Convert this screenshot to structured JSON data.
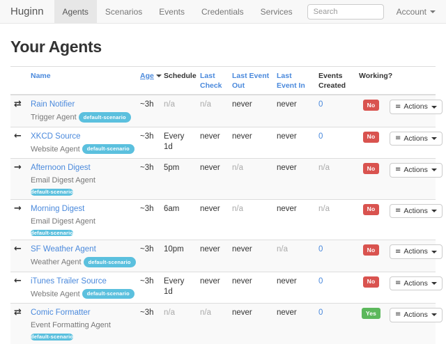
{
  "colors": {
    "link": "#4a89dc",
    "badge-info": "#5bc0de",
    "danger": "#d9534f",
    "success": "#5cb85c"
  },
  "navbar": {
    "brand": "Huginn",
    "items": [
      {
        "label": "Agents",
        "active": true
      },
      {
        "label": "Scenarios",
        "active": false
      },
      {
        "label": "Events",
        "active": false
      },
      {
        "label": "Credentials",
        "active": false
      },
      {
        "label": "Services",
        "active": false
      }
    ],
    "search_placeholder": "Search",
    "account_label": "Account"
  },
  "page": {
    "title": "Your Agents"
  },
  "table": {
    "actions_label": "Actions",
    "headers": [
      {
        "label": "",
        "sortable": false,
        "sorted": false
      },
      {
        "label": "Name",
        "sortable": true,
        "sorted": false
      },
      {
        "label": "Age",
        "sortable": true,
        "sorted": true
      },
      {
        "label": "Schedule",
        "sortable": false,
        "sorted": false
      },
      {
        "label": "Last Check",
        "sortable": true,
        "sorted": false
      },
      {
        "label": "Last Event Out",
        "sortable": true,
        "sorted": false
      },
      {
        "label": "Last Event In",
        "sortable": true,
        "sorted": false
      },
      {
        "label": "Events Created",
        "sortable": false,
        "sorted": false
      },
      {
        "label": "Working?",
        "sortable": false,
        "sorted": false
      },
      {
        "label": "",
        "sortable": false,
        "sorted": false
      }
    ],
    "rows": [
      {
        "icon": "exchange-icon",
        "name": "Rain Notifier",
        "type": "Trigger Agent",
        "scenario": "default-scenario",
        "badge_below": false,
        "age": "~3h",
        "schedule": "n/a",
        "last_check": "n/a",
        "last_event_out": "never",
        "last_event_in": "never",
        "events_created": "0",
        "working": "No"
      },
      {
        "icon": "arrow-left-icon",
        "name": "XKCD Source",
        "type": "Website Agent",
        "scenario": "default-scenario",
        "badge_below": false,
        "age": "~3h",
        "schedule": "Every 1d",
        "last_check": "never",
        "last_event_out": "never",
        "last_event_in": "never",
        "events_created": "0",
        "working": "No"
      },
      {
        "icon": "arrow-right-icon",
        "name": "Afternoon Digest",
        "type": "Email Digest Agent",
        "scenario": "default-scenario",
        "badge_below": true,
        "age": "~3h",
        "schedule": "5pm",
        "last_check": "never",
        "last_event_out": "n/a",
        "last_event_in": "never",
        "events_created": "n/a",
        "working": "No"
      },
      {
        "icon": "arrow-right-icon",
        "name": "Morning Digest",
        "type": "Email Digest Agent",
        "scenario": "default-scenario",
        "badge_below": true,
        "age": "~3h",
        "schedule": "6am",
        "last_check": "never",
        "last_event_out": "n/a",
        "last_event_in": "never",
        "events_created": "n/a",
        "working": "No"
      },
      {
        "icon": "arrow-left-icon",
        "name": "SF Weather Agent",
        "type": "Weather Agent",
        "scenario": "default-scenario",
        "badge_below": false,
        "age": "~3h",
        "schedule": "10pm",
        "last_check": "never",
        "last_event_out": "never",
        "last_event_in": "n/a",
        "events_created": "0",
        "working": "No"
      },
      {
        "icon": "arrow-left-icon",
        "name": "iTunes Trailer Source",
        "type": "Website Agent",
        "scenario": "default-scenario",
        "badge_below": false,
        "age": "~3h",
        "schedule": "Every 1d",
        "last_check": "never",
        "last_event_out": "never",
        "last_event_in": "never",
        "events_created": "0",
        "working": "No"
      },
      {
        "icon": "exchange-icon",
        "name": "Comic Formatter",
        "type": "Event Formatting Agent",
        "scenario": "default-scenario",
        "badge_below": true,
        "age": "~3h",
        "schedule": "n/a",
        "last_check": "n/a",
        "last_event_out": "never",
        "last_event_in": "never",
        "events_created": "0",
        "working": "Yes"
      }
    ]
  }
}
